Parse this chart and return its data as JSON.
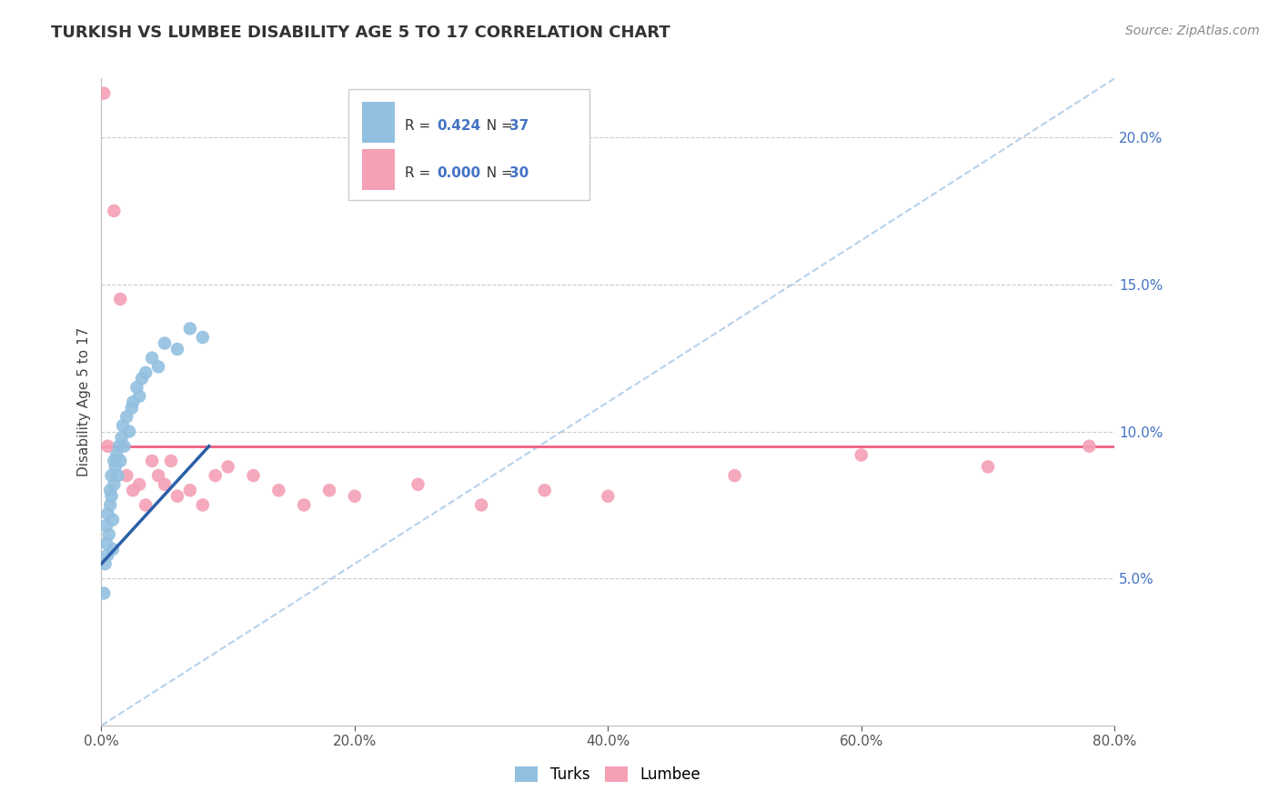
{
  "title": "TURKISH VS LUMBEE DISABILITY AGE 5 TO 17 CORRELATION CHART",
  "source": "Source: ZipAtlas.com",
  "ylabel": "Disability Age 5 to 17",
  "legend_turks_label": "Turks",
  "legend_lumbee_label": "Lumbee",
  "turks_color": "#92C0E0",
  "lumbee_color": "#F4A0B5",
  "turks_line_color": "#2B5FA8",
  "lumbee_line_color": "#F06080",
  "diagonal_color": "#AECCE8",
  "xmin": 0.0,
  "xmax": 80.0,
  "ymin": 0.0,
  "ymax": 22.0,
  "yticks": [
    5.0,
    10.0,
    15.0,
    20.0
  ],
  "xticks": [
    0.0,
    20.0,
    40.0,
    60.0,
    80.0
  ],
  "turks_x": [
    0.2,
    0.3,
    0.4,
    0.4,
    0.5,
    0.5,
    0.6,
    0.7,
    0.7,
    0.8,
    0.8,
    0.9,
    0.9,
    1.0,
    1.0,
    1.1,
    1.2,
    1.3,
    1.4,
    1.5,
    1.6,
    1.7,
    1.8,
    2.0,
    2.2,
    2.4,
    2.5,
    2.8,
    3.0,
    3.2,
    3.5,
    4.0,
    4.5,
    5.0,
    6.0,
    7.0,
    8.0
  ],
  "turks_y": [
    4.5,
    5.5,
    6.2,
    6.8,
    5.8,
    7.2,
    6.5,
    7.5,
    8.0,
    7.8,
    8.5,
    6.0,
    7.0,
    8.2,
    9.0,
    8.8,
    9.2,
    8.5,
    9.5,
    9.0,
    9.8,
    10.2,
    9.5,
    10.5,
    10.0,
    10.8,
    11.0,
    11.5,
    11.2,
    11.8,
    12.0,
    12.5,
    12.2,
    13.0,
    12.8,
    13.5,
    13.2
  ],
  "lumbee_x": [
    0.2,
    0.5,
    1.0,
    1.5,
    2.0,
    2.5,
    3.0,
    3.5,
    4.0,
    4.5,
    5.0,
    5.5,
    6.0,
    7.0,
    8.0,
    9.0,
    10.0,
    12.0,
    14.0,
    16.0,
    18.0,
    20.0,
    25.0,
    30.0,
    35.0,
    40.0,
    50.0,
    60.0,
    70.0,
    78.0
  ],
  "lumbee_y": [
    21.5,
    9.5,
    17.5,
    14.5,
    8.5,
    8.0,
    8.2,
    7.5,
    9.0,
    8.5,
    8.2,
    9.0,
    7.8,
    8.0,
    7.5,
    8.5,
    8.8,
    8.5,
    8.0,
    7.5,
    8.0,
    7.8,
    8.2,
    7.5,
    8.0,
    7.8,
    8.5,
    9.2,
    8.8,
    9.5
  ],
  "turks_reg_x0": 0.0,
  "turks_reg_x1": 8.5,
  "turks_reg_y0": 5.5,
  "turks_reg_y1": 9.5,
  "lumbee_reg_y": 9.5,
  "diagonal_x0": 0.0,
  "diagonal_x1": 80.0,
  "diagonal_y0": 0.0,
  "diagonal_y1": 22.0
}
